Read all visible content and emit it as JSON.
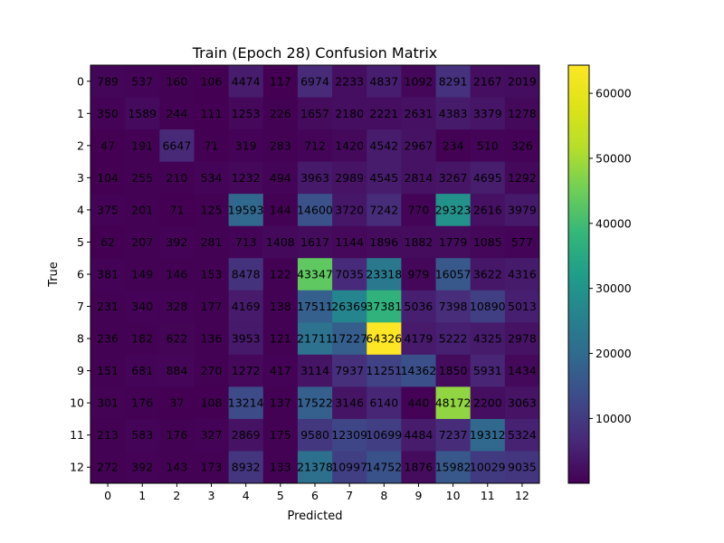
{
  "chart_data": {
    "type": "heatmap",
    "title": "Train (Epoch 28) Confusion Matrix",
    "xlabel": "Predicted",
    "ylabel": "True",
    "x_categories": [
      "0",
      "1",
      "2",
      "3",
      "4",
      "5",
      "6",
      "7",
      "8",
      "9",
      "10",
      "11",
      "12"
    ],
    "y_categories": [
      "0",
      "1",
      "2",
      "3",
      "4",
      "5",
      "6",
      "7",
      "8",
      "9",
      "10",
      "11",
      "12"
    ],
    "matrix": [
      [
        789,
        537,
        160,
        106,
        4474,
        117,
        6974,
        2233,
        4837,
        1092,
        8291,
        2167,
        2019
      ],
      [
        350,
        1589,
        244,
        111,
        1253,
        226,
        1657,
        2180,
        2221,
        2631,
        4383,
        3379,
        1278
      ],
      [
        47,
        191,
        6647,
        71,
        319,
        283,
        712,
        1420,
        4542,
        2967,
        234,
        510,
        326
      ],
      [
        104,
        255,
        210,
        534,
        1232,
        494,
        3963,
        2989,
        4545,
        2814,
        3267,
        4695,
        1292
      ],
      [
        375,
        201,
        71,
        125,
        19593,
        144,
        14600,
        3720,
        7242,
        770,
        29323,
        2616,
        3979
      ],
      [
        62,
        207,
        392,
        281,
        713,
        1408,
        1617,
        1144,
        1896,
        1882,
        1779,
        1085,
        577
      ],
      [
        381,
        149,
        146,
        153,
        8478,
        122,
        43347,
        7035,
        23318,
        979,
        16057,
        3622,
        4316
      ],
      [
        231,
        340,
        328,
        177,
        4169,
        138,
        17511,
        26369,
        37381,
        5036,
        7398,
        10890,
        5013
      ],
      [
        236,
        182,
        622,
        136,
        3953,
        121,
        21711,
        17227,
        64326,
        4179,
        5222,
        4325,
        2978
      ],
      [
        151,
        681,
        884,
        270,
        1272,
        417,
        3114,
        7937,
        11251,
        14362,
        1850,
        5931,
        1434
      ],
      [
        301,
        176,
        37,
        108,
        13214,
        137,
        17522,
        3146,
        6140,
        440,
        48172,
        2200,
        3063
      ],
      [
        213,
        583,
        176,
        327,
        2869,
        175,
        9580,
        12309,
        10699,
        4484,
        7237,
        19312,
        5324
      ],
      [
        272,
        392,
        143,
        173,
        8932,
        133,
        21378,
        10997,
        14752,
        1876,
        15982,
        10029,
        9035
      ]
    ],
    "colorbar": {
      "colormap": "viridis",
      "vmin": 37,
      "vmax": 64326,
      "ticks": [
        10000,
        20000,
        30000,
        40000,
        50000,
        60000
      ],
      "tick_labels": [
        "10000",
        "20000",
        "30000",
        "40000",
        "50000",
        "60000"
      ]
    },
    "grid": false,
    "legend": "none"
  }
}
